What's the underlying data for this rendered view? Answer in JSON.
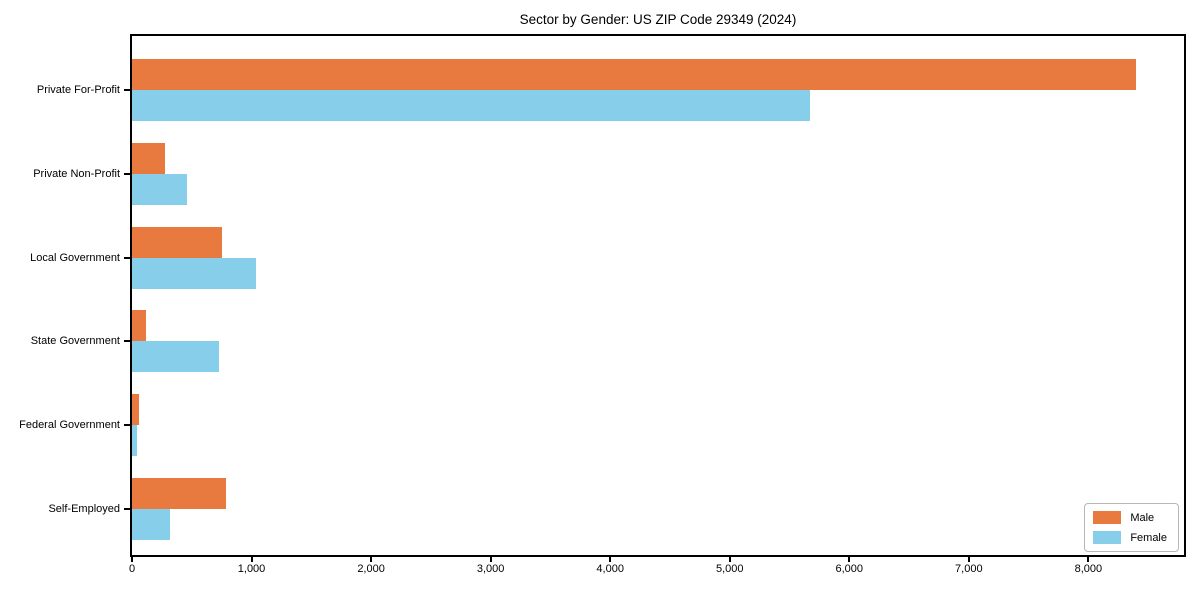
{
  "chart_data": {
    "type": "bar",
    "orientation": "horizontal",
    "title": "Sector by Gender: US ZIP Code 29349 (2024)",
    "categories": [
      "Private For-Profit",
      "Private Non-Profit",
      "Local Government",
      "State Government",
      "Federal Government",
      "Self-Employed"
    ],
    "series": [
      {
        "name": "Male",
        "color": "#e8793f",
        "values": [
          8400,
          280,
          750,
          120,
          60,
          790
        ]
      },
      {
        "name": "Female",
        "color": "#87ceeb",
        "values": [
          5670,
          460,
          1040,
          730,
          40,
          320
        ]
      }
    ],
    "xlabel": "",
    "ylabel": "",
    "xlim": [
      0,
      8800
    ],
    "x_tick_values": [
      0,
      1000,
      2000,
      3000,
      4000,
      5000,
      6000,
      7000,
      8000
    ],
    "x_tick_labels": [
      "0",
      "1,000",
      "2,000",
      "3,000",
      "4,000",
      "5,000",
      "6,000",
      "7,000",
      "8,000"
    ],
    "grid": false,
    "legend": {
      "position": "lower right",
      "entries": [
        "Male",
        "Female"
      ]
    }
  }
}
